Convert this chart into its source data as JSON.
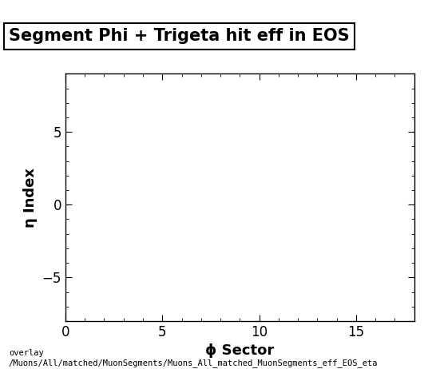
{
  "title": "Segment Phi + Trigeta hit eff in EOS",
  "xlabel": "ϕ Sector",
  "ylabel": "η Index",
  "xlim": [
    0,
    18
  ],
  "ylim": [
    -8,
    9
  ],
  "xticks": [
    0,
    5,
    10,
    15
  ],
  "yticks": [
    -5,
    0,
    5
  ],
  "background_color": "#ffffff",
  "plot_bg_color": "#ffffff",
  "title_fontsize": 15,
  "axis_label_fontsize": 13,
  "tick_fontsize": 12,
  "footer_text": "overlay\n/Muons/All/matched/MuonSegments/Muons_All_matched_MuonSegments_eff_EOS_eta",
  "footer_fontsize": 7.5,
  "fig_width": 5.46,
  "fig_height": 4.62,
  "fig_dpi": 100
}
